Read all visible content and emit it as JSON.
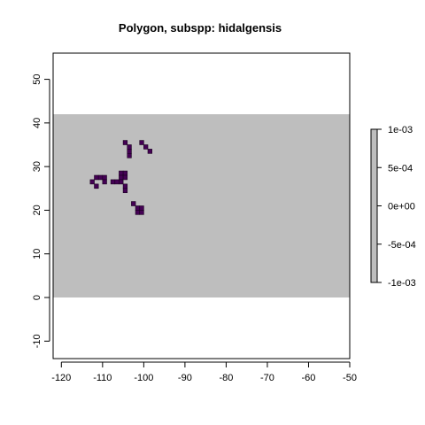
{
  "chart_data": {
    "type": "heatmap",
    "title": "Polygon, subspp: hidalgensis",
    "xlabel": "",
    "ylabel": "",
    "xlim": [
      -122,
      -50
    ],
    "ylim": [
      -14,
      56
    ],
    "x_ticks": [
      -120,
      -110,
      -100,
      -90,
      -80,
      -70,
      -60,
      -50
    ],
    "y_ticks": [
      -10,
      0,
      10,
      20,
      30,
      40,
      50
    ],
    "extent": {
      "xmin": -122,
      "xmax": -50,
      "ymin": 0,
      "ymax": 42
    },
    "background_fill": "#bebebe",
    "cell_fill": "#440154",
    "cell_size_degrees": 1,
    "cells": [
      [
        -105,
        35
      ],
      [
        -104,
        34
      ],
      [
        -104,
        33
      ],
      [
        -104,
        32
      ],
      [
        -101,
        35
      ],
      [
        -100,
        34
      ],
      [
        -99,
        33
      ],
      [
        -113,
        26
      ],
      [
        -112,
        27
      ],
      [
        -112,
        25
      ],
      [
        -111,
        27
      ],
      [
        -110,
        27
      ],
      [
        -110,
        26
      ],
      [
        -108,
        26
      ],
      [
        -107,
        26
      ],
      [
        -106,
        28
      ],
      [
        -106,
        27
      ],
      [
        -106,
        26
      ],
      [
        -105,
        28
      ],
      [
        -105,
        27
      ],
      [
        -105,
        25
      ],
      [
        -105,
        24
      ],
      [
        -103,
        21
      ],
      [
        -102,
        20
      ],
      [
        -102,
        19
      ],
      [
        -101,
        20
      ],
      [
        -101,
        19
      ]
    ],
    "legend": {
      "position": "right",
      "fill": "#bebebe",
      "ticks": [
        "1e-03",
        "5e-04",
        "0e+00",
        "-5e-04",
        "-1e-03"
      ],
      "range": [
        -0.001,
        0.001
      ]
    }
  }
}
